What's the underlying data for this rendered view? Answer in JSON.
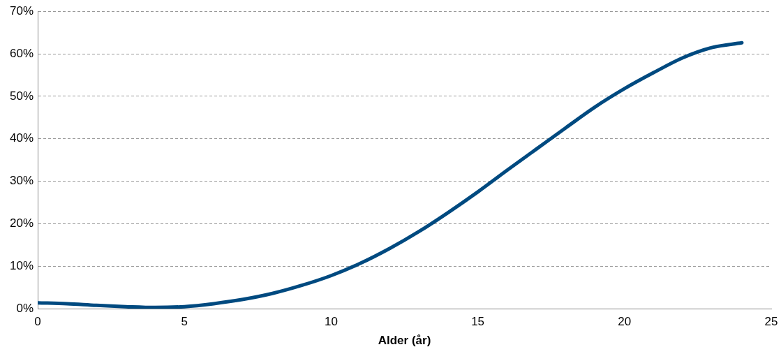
{
  "chart_data": {
    "type": "line",
    "xlabel": "Alder (år)",
    "x": [
      0,
      1,
      2,
      3,
      4,
      5,
      6,
      7,
      8,
      9,
      10,
      11,
      12,
      13,
      14,
      15,
      16,
      17,
      18,
      19,
      20,
      21,
      22,
      23,
      24
    ],
    "series": [
      {
        "color": "#004a80",
        "values": [
          1.4,
          1.2,
          0.8,
          0.5,
          0.3,
          0.5,
          1.2,
          2.2,
          3.6,
          5.5,
          7.8,
          10.7,
          14.2,
          18.2,
          22.7,
          27.5,
          32.6,
          37.6,
          42.6,
          47.5,
          51.8,
          55.6,
          59.1,
          61.5,
          62.6
        ]
      }
    ],
    "xlim": [
      0,
      25
    ],
    "xticks": [
      0,
      5,
      10,
      15,
      20,
      25
    ],
    "ylim": [
      0,
      70
    ],
    "yticks": [
      {
        "value": 0,
        "label": "0%"
      },
      {
        "value": 10,
        "label": "10%"
      },
      {
        "value": 20,
        "label": "20%"
      },
      {
        "value": 30,
        "label": "30%"
      },
      {
        "value": 40,
        "label": "40%"
      },
      {
        "value": 50,
        "label": "50%"
      },
      {
        "value": 60,
        "label": "60%"
      },
      {
        "value": 70,
        "label": "70%"
      }
    ],
    "grid": "y",
    "legend": false,
    "marker": "none",
    "line_style": "solid"
  }
}
